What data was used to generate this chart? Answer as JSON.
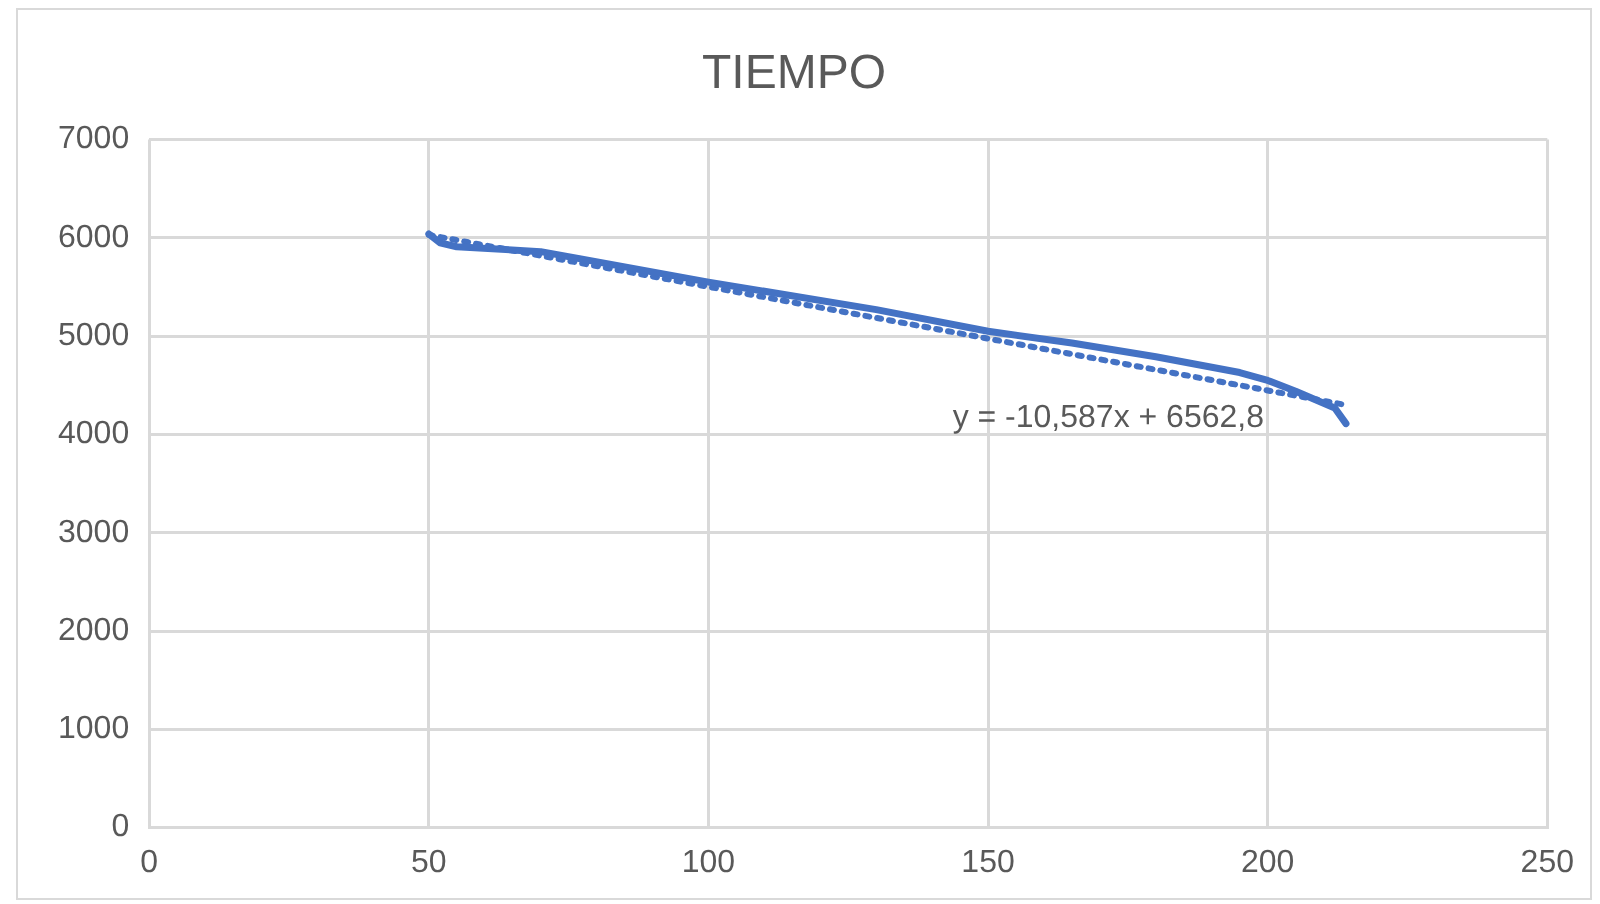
{
  "chart_data": {
    "type": "line",
    "title": "TIEMPO",
    "series": [
      {
        "color": "#4472c4",
        "line_style": "solid",
        "x": [
          50,
          52,
          55,
          70,
          100,
          130,
          150,
          165,
          180,
          195,
          200,
          205,
          212,
          214
        ],
        "values": [
          6040,
          5950,
          5910,
          5860,
          5550,
          5270,
          5050,
          4930,
          4790,
          4630,
          4550,
          4440,
          4270,
          4110
        ]
      },
      {
        "color": "#4472c4",
        "line_style": "dotted",
        "x": [
          50,
          214
        ],
        "values": [
          6030,
          4300
        ]
      }
    ],
    "annotations": [
      "y = -10,587x + 6562,8"
    ],
    "xlim": [
      0,
      250
    ],
    "xticks": [
      0,
      50,
      100,
      150,
      200,
      250
    ],
    "ylim": [
      0,
      7000
    ],
    "yticks": [
      0,
      1000,
      2000,
      3000,
      4000,
      5000,
      6000,
      7000
    ],
    "grid": true,
    "legend": false,
    "marker": "none"
  }
}
